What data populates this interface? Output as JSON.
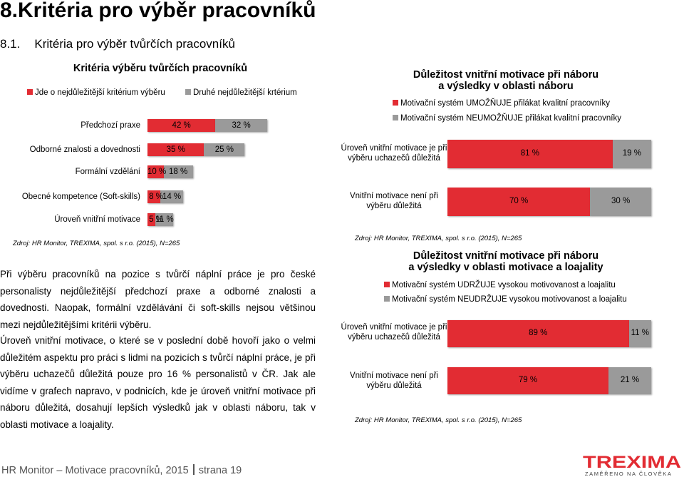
{
  "page": {
    "title": "8.Kritéria pro výběr pracovníků",
    "subtitle_num": "8.1.",
    "subtitle_text": "Kritéria pro výběr tvůrčích pracovníků"
  },
  "colors": {
    "red": "#e22c33",
    "grey": "#9a9a9a"
  },
  "left_chart": {
    "title": "Kritéria výběru tvůrčích pracovníků",
    "legend": [
      "Jde o nejdůležitější kritérium výběru",
      "Druhé nejdůležitější krtérium"
    ],
    "source": "Zdroj: HR  Monitor, TREXIMA, spol. s r.o.  (2015), N=265"
  },
  "chart_data": [
    {
      "type": "bar",
      "title": "Kritéria výběru tvůrčích pracovníků",
      "categories": [
        "Předchozí praxe",
        "Odborné znalosti a dovednosti",
        "Formální vzdělání",
        "Obecné kompetence (Soft-skills)",
        "Úroveň vnitřní motivace"
      ],
      "series": [
        {
          "name": "Jde o nejdůležitější kritérium výběru",
          "values": [
            42,
            35,
            10,
            8,
            5
          ],
          "labels": [
            "42 %",
            "35 %",
            "10 %",
            "8 %",
            "5 %"
          ]
        },
        {
          "name": "Druhé nejdůležitější krtérium",
          "values": [
            32,
            25,
            18,
            14,
            11
          ],
          "labels": [
            "32 %",
            "25 %",
            "18 %",
            "14 %",
            "11 %"
          ]
        }
      ],
      "stacked": true
    },
    {
      "type": "bar",
      "title": "Důležitost vnitřní motivace při náboru a výsledky v oblasti náboru",
      "categories": [
        "Úroveň vnitřní motivace je při výběru uchazečů důležitá",
        "Vnitřní motivace není při výběru důležitá"
      ],
      "series": [
        {
          "name": "Motivační systém UMOŽŇUJE přilákat kvalitní pracovníky",
          "values": [
            81,
            70
          ],
          "labels": [
            "81 %",
            "70 %"
          ]
        },
        {
          "name": "Motivační systém NEUMOŽŇUJE přilákat kvalitní pracovníky",
          "values": [
            19,
            30
          ],
          "labels": [
            "19 %",
            "30 %"
          ]
        }
      ],
      "stacked": true
    },
    {
      "type": "bar",
      "title": "Důležitost vnitřní motivace při náboru a výsledky v oblasti motivace a loajality",
      "categories": [
        "Úroveň vnitřní motivace je při výběru uchazečů důležitá",
        "Vnitřní motivace není při výběru důležitá"
      ],
      "series": [
        {
          "name": "Motivační systém UDRŽUJE vysokou motivovanost a loajalitu",
          "values": [
            89,
            79
          ],
          "labels": [
            "89 %",
            "79 %"
          ]
        },
        {
          "name": "Motivační systém NEUDRŽUJE vysokou motivovanost a loajalitu",
          "values": [
            11,
            21
          ],
          "labels": [
            "11 %",
            "21 %"
          ]
        }
      ],
      "stacked": true
    }
  ],
  "right_top": {
    "title1": "Důležitost vnitřní motivace při náboru",
    "title2": "a výsledky v oblasti náboru",
    "source": "Zdroj: HR  Monitor, TREXIMA, spol. s r.o.  (2015), N=265"
  },
  "right_bottom": {
    "title1": "Důležitost vnitřní motivace při náboru",
    "title2": "a výsledky v oblasti motivace a loajality",
    "source": "Zdroj: HR  Monitor, TREXIMA, spol. s r.o.  (2015), N=265"
  },
  "paragraph1": "Při výběru pracovníků na pozice s tvůrčí náplní práce je pro české personalisty nejdůležitější předchozí praxe a odborné znalosti a dovednosti. Naopak, formální vzdělávání či soft-skills nejsou většinou mezi nejdůležitějšími kritérii výběru.",
  "paragraph2": "Úroveň vnitřní motivace, o které se v poslední době hovoří jako o velmi důležitém aspektu pro práci s lidmi na pozicích s tvůrčí náplní práce, je při výběru uchazečů důležitá pouze pro 16 % personalistů v ČR. Jak ale vidíme v grafech napravo, v podnicích, kde je úroveň vnitřní motivace při náboru důležitá, dosahují lepších výsledků jak v oblasti náboru, tak v oblasti motivace a loajality.",
  "footer": {
    "left": "HR Monitor – Motivace pracovníků, 2015",
    "right": "strana 19"
  },
  "logo": {
    "name": "TREXIMA",
    "tagline": "ZAMĚŘENO NA ČLOVĚKA"
  }
}
